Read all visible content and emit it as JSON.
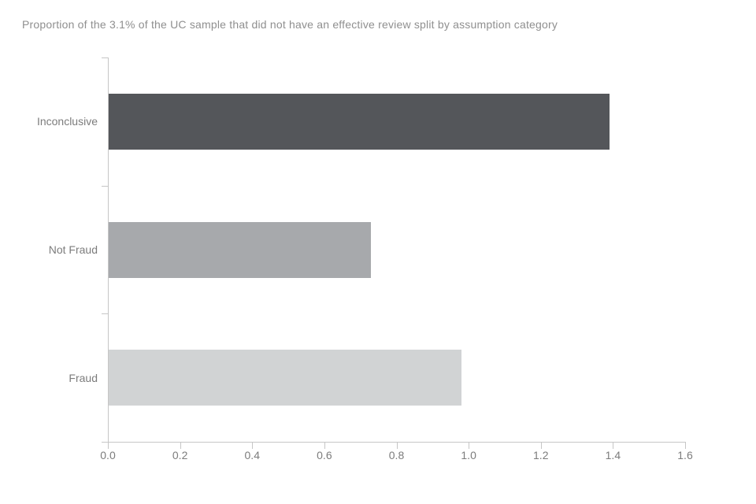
{
  "chart_data": {
    "type": "bar",
    "orientation": "horizontal",
    "title": "Proportion of the 3.1% of the UC sample that did not have an effective review split by assumption category",
    "categories": [
      "Inconclusive",
      "Not Fraud",
      "Fraud"
    ],
    "values": [
      1.39,
      0.73,
      0.98
    ],
    "bar_colors": [
      "#54565a",
      "#a7a9ac",
      "#d1d3d4"
    ],
    "xlabel": "",
    "ylabel": "",
    "xlim": [
      0.0,
      1.6
    ],
    "x_tick_labels": [
      "0.0",
      "0.2",
      "0.4",
      "0.6",
      "0.8",
      "1.0",
      "1.2",
      "1.4",
      "1.6"
    ],
    "grid": false,
    "legend": null,
    "colors": {
      "title_text": "#8f8f8f",
      "axis_text": "#7c7c7c",
      "axis_line": "#c6c6c6"
    }
  }
}
